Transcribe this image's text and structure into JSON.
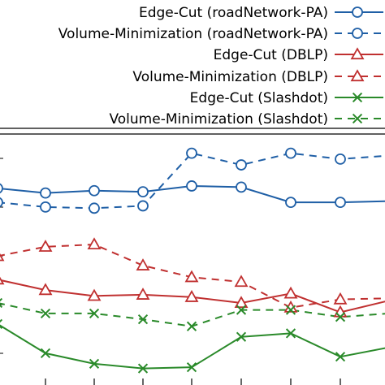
{
  "chart_data": {
    "type": "line",
    "x": [
      1,
      2,
      3,
      4,
      5,
      6,
      7,
      8,
      9
    ],
    "ylim": [
      0,
      1
    ],
    "grid": false,
    "legend_placement": "top-right, outside plot",
    "series": [
      {
        "name": "Edge-Cut (roadNetwork-PA)",
        "color": "#1f5fa6",
        "marker": "circle",
        "dashed": false,
        "values": [
          0.82,
          0.8,
          0.81,
          0.805,
          0.83,
          0.825,
          0.76,
          0.76,
          0.765
        ]
      },
      {
        "name": "Volume-Minimization (roadNetwork-PA)",
        "color": "#1f5fa6",
        "marker": "circle",
        "dashed": true,
        "values": [
          0.76,
          0.74,
          0.735,
          0.745,
          0.97,
          0.92,
          0.97,
          0.945,
          0.96
        ]
      },
      {
        "name": "Edge-Cut (DBLP)",
        "color": "#c03030",
        "marker": "triangle",
        "dashed": false,
        "values": [
          0.43,
          0.385,
          0.36,
          0.365,
          0.355,
          0.33,
          0.37,
          0.29,
          0.34
        ]
      },
      {
        "name": "Volume-Minimization (DBLP)",
        "color": "#c03030",
        "marker": "triangle",
        "dashed": true,
        "values": [
          0.53,
          0.57,
          0.58,
          0.49,
          0.44,
          0.42,
          0.31,
          0.345,
          0.35
        ]
      },
      {
        "name": "Edge-Cut (Slashdot)",
        "color": "#2a8a2a",
        "marker": "x",
        "dashed": false,
        "values": [
          0.24,
          0.115,
          0.07,
          0.05,
          0.055,
          0.185,
          0.2,
          0.1,
          0.14
        ]
      },
      {
        "name": "Volume-Minimization (Slashdot)",
        "color": "#2a8a2a",
        "marker": "x",
        "dashed": true,
        "values": [
          0.33,
          0.285,
          0.285,
          0.26,
          0.23,
          0.3,
          0.3,
          0.27,
          0.285
        ]
      }
    ]
  }
}
